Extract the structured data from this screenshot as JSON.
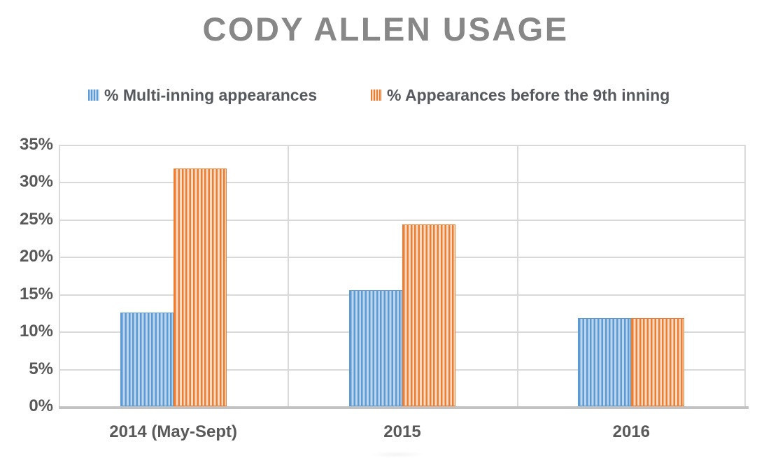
{
  "title": {
    "text": "CODY ALLEN USAGE",
    "color": "#878787"
  },
  "legend": {
    "position": "top",
    "items": [
      {
        "label": "% Multi-inning appearances",
        "swatch_color": "#5B9BD5",
        "swatch_light": "#BED5EC"
      },
      {
        "label": "% Appearances before the 9th inning",
        "swatch_color": "#ED7D31",
        "swatch_light": "#F6DBC7"
      }
    ]
  },
  "axes": {
    "gridline_color": "#D9D9D9",
    "axis_line_color": "#C2C2C2",
    "tick_text_color": "#595959"
  },
  "chart_data": {
    "type": "bar",
    "title": "CODY ALLEN USAGE",
    "categories": [
      "2014 (May-Sept)",
      "2015",
      "2016"
    ],
    "series": [
      {
        "name": "% Multi-inning appearances",
        "color": "#5B9BD5",
        "color_light": "#BED5EC",
        "values": [
          12.5,
          15.5,
          11.8
        ]
      },
      {
        "name": "% Appearances before the 9th inning",
        "color": "#ED7D31",
        "color_light": "#F6DBC7",
        "values": [
          31.8,
          24.3,
          11.8
        ]
      }
    ],
    "xlabel": "",
    "ylabel": "",
    "ylim": [
      0,
      35
    ],
    "ytick_values": [
      35,
      30,
      25,
      20,
      15,
      10,
      5,
      0
    ],
    "ytick_labels": [
      "35%",
      "30%",
      "25%",
      "20%",
      "15%",
      "10%",
      "5%",
      "0%"
    ],
    "grid": true,
    "legend_position": "top",
    "bar_fill_pattern": "vertical-stripes"
  }
}
